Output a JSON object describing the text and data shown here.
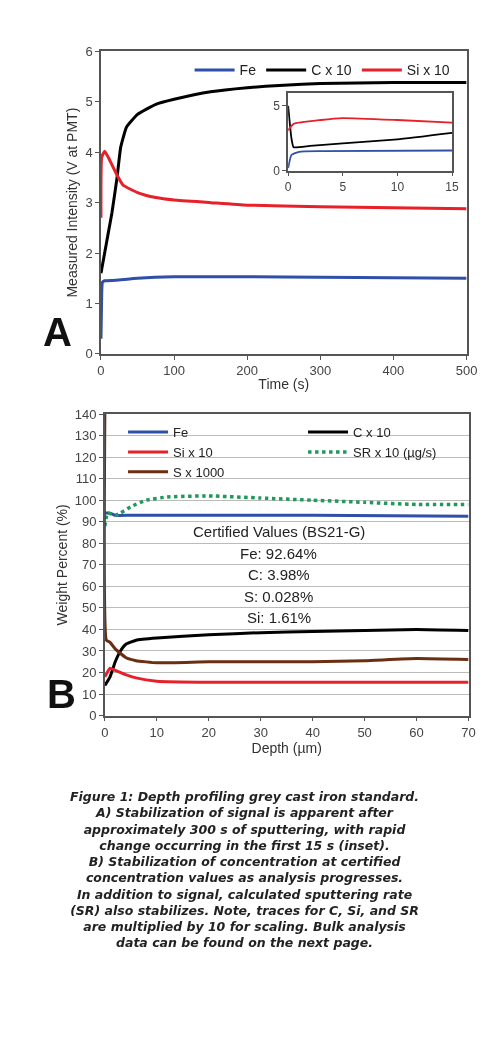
{
  "chart_data": [
    {
      "type": "line",
      "xlabel": "Time (s)",
      "ylabel": "Measured Intensity (V at PMT)",
      "xlim": [
        0,
        500
      ],
      "xticks": [
        0,
        100,
        200,
        300,
        400,
        500
      ],
      "ylim": [
        0,
        6
      ],
      "yticks": [
        0,
        1,
        2,
        3,
        4,
        5,
        6
      ],
      "grid": false,
      "legend": "top",
      "annotations": [
        "A"
      ],
      "series": [
        {
          "name": "Fe",
          "color": "#2f4fa8",
          "x": [
            0,
            1,
            2,
            5,
            20,
            50,
            100,
            200,
            300,
            400,
            500
          ],
          "values": [
            0.3,
            1.2,
            1.42,
            1.45,
            1.46,
            1.5,
            1.53,
            1.53,
            1.52,
            1.51,
            1.5
          ]
        },
        {
          "name": "C x 10",
          "color": "#000000",
          "x": [
            0,
            5,
            10,
            15,
            22,
            27,
            35,
            50,
            75,
            100,
            150,
            200,
            250,
            300,
            400,
            500
          ],
          "values": [
            1.6,
            2.0,
            2.4,
            2.8,
            3.5,
            4.1,
            4.5,
            4.75,
            4.95,
            5.05,
            5.2,
            5.28,
            5.33,
            5.36,
            5.38,
            5.38
          ]
        },
        {
          "name": "Si x 10",
          "color": "#e8202a",
          "x": [
            0,
            1,
            5,
            10,
            20,
            30,
            50,
            75,
            100,
            150,
            200,
            300,
            400,
            500
          ],
          "values": [
            2.7,
            3.9,
            4.02,
            3.9,
            3.6,
            3.35,
            3.2,
            3.1,
            3.05,
            3.0,
            2.95,
            2.92,
            2.9,
            2.88
          ]
        }
      ]
    },
    {
      "type": "line",
      "xlim": [
        0,
        15
      ],
      "xticks": [
        0,
        5,
        10,
        15
      ],
      "ylim": [
        0,
        6
      ],
      "yticks": [
        0,
        5
      ],
      "grid": false,
      "series": [
        {
          "color": "#2f4fa8",
          "x": [
            0,
            0.3,
            1,
            3,
            15
          ],
          "values": [
            0.2,
            1.2,
            1.45,
            1.5,
            1.55
          ]
        },
        {
          "color": "#000000",
          "x": [
            0,
            0.3,
            0.5,
            2,
            5,
            10,
            15
          ],
          "values": [
            5.0,
            2.5,
            1.8,
            1.9,
            2.1,
            2.4,
            2.9
          ]
        },
        {
          "color": "#e8202a",
          "x": [
            0,
            0.5,
            3,
            5,
            10,
            15
          ],
          "values": [
            3.1,
            3.6,
            3.9,
            4.05,
            3.9,
            3.7
          ]
        }
      ]
    },
    {
      "type": "line",
      "xlabel": "Depth (µm)",
      "ylabel": "Weight Percent (%)",
      "xlim": [
        0,
        70
      ],
      "xticks": [
        0,
        10,
        20,
        30,
        40,
        50,
        60,
        70
      ],
      "ylim": [
        0,
        140
      ],
      "yticks": [
        0,
        10,
        20,
        30,
        40,
        50,
        60,
        70,
        80,
        90,
        100,
        110,
        120,
        130,
        140
      ],
      "grid": "y",
      "legend": "top left",
      "annotations": [
        "B",
        "Certified Values (BS21-G)",
        "Fe: 92.64%",
        "C: 3.98%",
        "S: 0.028%",
        "Si: 1.61%",
        "Figure 1: Depth profiling grey cast iron standard.\nA) Stabilization of signal is apparent after\napproximately 300 s of sputtering, with rapid\nchange occurring in the first 15 s (inset).\nB) Stabilization of concentration at certified\nconcentration values as analysis progresses.\nIn addition to signal, calculated sputtering rate\n(SR) also stabilizes. Note, traces for C, Si, and SR\nare multiplied by 10 for scaling. Bulk analysis\ndata can be found on the next page."
      ],
      "series": [
        {
          "name": "Fe",
          "color": "#2f4fa8",
          "x": [
            0,
            1,
            2,
            5,
            20,
            40,
            70
          ],
          "values": [
            94,
            94,
            93,
            93,
            93,
            93,
            92.5
          ]
        },
        {
          "name": "C x 10",
          "color": "#000000",
          "x": [
            0,
            1,
            2,
            3,
            4,
            6,
            10,
            20,
            30,
            40,
            50,
            60,
            70
          ],
          "values": [
            14,
            18,
            25,
            30,
            33,
            35,
            36,
            37.5,
            38.5,
            39,
            39.5,
            40,
            39.5
          ]
        },
        {
          "name": "Si x 10",
          "color": "#e8202a",
          "x": [
            0,
            1,
            2,
            4,
            6,
            10,
            20,
            70
          ],
          "values": [
            18,
            22,
            21,
            19,
            17.5,
            16,
            15.5,
            15.5
          ]
        },
        {
          "name": "SR x 10 (µg/s)",
          "color": "#1f9a5a",
          "line_style": "dotted",
          "x": [
            0,
            0.5,
            2,
            3,
            5,
            8,
            12,
            20,
            30,
            40,
            50,
            60,
            70
          ],
          "values": [
            88,
            94,
            93,
            94,
            97,
            100,
            101.5,
            102,
            101,
            100,
            99,
            98,
            98
          ]
        },
        {
          "name": "S x 1000",
          "color": "#6b2e10",
          "x": [
            0,
            0.3,
            1,
            2,
            4,
            6,
            10,
            20,
            30,
            40,
            50,
            60,
            70
          ],
          "values": [
            140,
            35,
            34,
            31,
            27,
            25.5,
            24.5,
            25,
            25,
            25,
            25.5,
            26.5,
            26
          ]
        }
      ]
    }
  ]
}
